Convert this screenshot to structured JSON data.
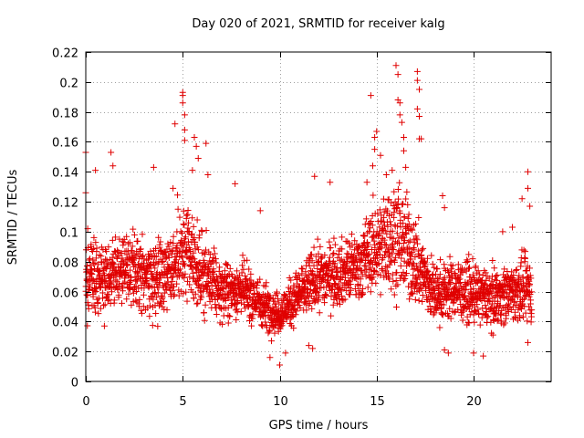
{
  "chart_data": {
    "type": "scatter",
    "title": "Day 020 of 2021, SRMTID for receiver kalg",
    "xlabel": "GPS time / hours",
    "ylabel": "SRMTID / TECUs",
    "xlim": [
      0,
      24
    ],
    "ylim": [
      0,
      0.22
    ],
    "grid": true,
    "marker": "+",
    "color": "#e00000",
    "x_ticks": [
      0,
      5,
      10,
      15,
      20
    ],
    "x_tick_labels": [
      "0",
      "5",
      "10",
      "15",
      "20"
    ],
    "y_ticks": [
      0,
      0.02,
      0.04,
      0.06,
      0.08,
      0.1,
      0.12,
      0.14,
      0.16,
      0.18,
      0.2,
      0.22
    ],
    "y_tick_labels": [
      "0",
      "0.02",
      "0.04",
      "0.06",
      "0.08",
      "0.1",
      "0.12",
      "0.14",
      "0.16",
      "0.18",
      "0.2",
      "0.22"
    ],
    "series": [
      {
        "name": "SRMTID",
        "x_range": [
          0,
          23
        ],
        "envelope": [
          {
            "x": 0.0,
            "center": 0.068,
            "spread": 0.026
          },
          {
            "x": 1.0,
            "center": 0.072,
            "spread": 0.03
          },
          {
            "x": 2.0,
            "center": 0.074,
            "spread": 0.028
          },
          {
            "x": 3.0,
            "center": 0.07,
            "spread": 0.03
          },
          {
            "x": 4.0,
            "center": 0.072,
            "spread": 0.032
          },
          {
            "x": 5.0,
            "center": 0.085,
            "spread": 0.04
          },
          {
            "x": 6.0,
            "center": 0.072,
            "spread": 0.032
          },
          {
            "x": 7.0,
            "center": 0.06,
            "spread": 0.022
          },
          {
            "x": 8.0,
            "center": 0.062,
            "spread": 0.022
          },
          {
            "x": 9.0,
            "center": 0.052,
            "spread": 0.02
          },
          {
            "x": 10.0,
            "center": 0.045,
            "spread": 0.016
          },
          {
            "x": 11.0,
            "center": 0.058,
            "spread": 0.022
          },
          {
            "x": 12.0,
            "center": 0.07,
            "spread": 0.026
          },
          {
            "x": 13.0,
            "center": 0.072,
            "spread": 0.026
          },
          {
            "x": 14.0,
            "center": 0.076,
            "spread": 0.028
          },
          {
            "x": 15.0,
            "center": 0.09,
            "spread": 0.036
          },
          {
            "x": 16.0,
            "center": 0.098,
            "spread": 0.046
          },
          {
            "x": 17.0,
            "center": 0.08,
            "spread": 0.036
          },
          {
            "x": 18.0,
            "center": 0.058,
            "spread": 0.024
          },
          {
            "x": 19.0,
            "center": 0.062,
            "spread": 0.024
          },
          {
            "x": 20.0,
            "center": 0.058,
            "spread": 0.024
          },
          {
            "x": 21.0,
            "center": 0.056,
            "spread": 0.022
          },
          {
            "x": 22.0,
            "center": 0.06,
            "spread": 0.024
          },
          {
            "x": 23.0,
            "center": 0.062,
            "spread": 0.026
          }
        ],
        "points": [
          [
            0.0,
            0.153
          ],
          [
            0.0,
            0.126
          ],
          [
            0.1,
            0.102
          ],
          [
            0.5,
            0.141
          ],
          [
            1.3,
            0.153
          ],
          [
            1.4,
            0.144
          ],
          [
            3.5,
            0.143
          ],
          [
            4.5,
            0.129
          ],
          [
            4.6,
            0.172
          ],
          [
            5.0,
            0.193
          ],
          [
            5.0,
            0.191
          ],
          [
            5.0,
            0.186
          ],
          [
            5.1,
            0.178
          ],
          [
            5.1,
            0.168
          ],
          [
            5.1,
            0.161
          ],
          [
            5.5,
            0.141
          ],
          [
            5.6,
            0.163
          ],
          [
            5.7,
            0.157
          ],
          [
            5.8,
            0.149
          ],
          [
            6.2,
            0.159
          ],
          [
            6.3,
            0.138
          ],
          [
            7.7,
            0.132
          ],
          [
            9.0,
            0.114
          ],
          [
            9.5,
            0.016
          ],
          [
            10.0,
            0.011
          ],
          [
            10.3,
            0.019
          ],
          [
            11.5,
            0.024
          ],
          [
            11.7,
            0.022
          ],
          [
            11.8,
            0.137
          ],
          [
            12.6,
            0.133
          ],
          [
            14.5,
            0.133
          ],
          [
            14.7,
            0.191
          ],
          [
            14.8,
            0.144
          ],
          [
            14.9,
            0.163
          ],
          [
            14.9,
            0.155
          ],
          [
            15.0,
            0.167
          ],
          [
            15.2,
            0.151
          ],
          [
            15.5,
            0.138
          ],
          [
            15.8,
            0.141
          ],
          [
            16.0,
            0.211
          ],
          [
            16.1,
            0.205
          ],
          [
            16.1,
            0.188
          ],
          [
            16.2,
            0.186
          ],
          [
            16.2,
            0.178
          ],
          [
            16.3,
            0.173
          ],
          [
            16.4,
            0.163
          ],
          [
            16.4,
            0.154
          ],
          [
            16.5,
            0.143
          ],
          [
            16.6,
            0.118
          ],
          [
            17.1,
            0.207
          ],
          [
            17.1,
            0.201
          ],
          [
            17.2,
            0.195
          ],
          [
            17.1,
            0.182
          ],
          [
            17.2,
            0.177
          ],
          [
            17.2,
            0.162
          ],
          [
            17.3,
            0.162
          ],
          [
            18.4,
            0.124
          ],
          [
            18.5,
            0.116
          ],
          [
            18.5,
            0.021
          ],
          [
            18.7,
            0.019
          ],
          [
            20.0,
            0.019
          ],
          [
            20.5,
            0.017
          ],
          [
            21.0,
            0.031
          ],
          [
            21.5,
            0.1
          ],
          [
            22.0,
            0.103
          ],
          [
            22.5,
            0.122
          ],
          [
            22.8,
            0.14
          ],
          [
            22.8,
            0.129
          ],
          [
            22.9,
            0.117
          ],
          [
            22.8,
            0.026
          ]
        ]
      }
    ]
  }
}
